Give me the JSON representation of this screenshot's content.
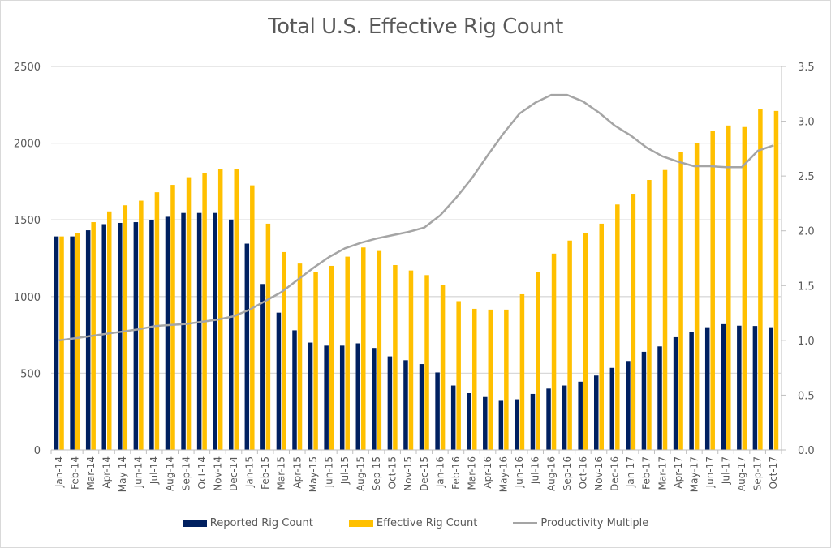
{
  "chart_data": {
    "type": "bar",
    "title": "Total U.S. Effective Rig Count",
    "xlabel": "",
    "ylabel": "",
    "y2label": "",
    "ylim": [
      0,
      2500
    ],
    "y2lim": [
      0,
      3.5
    ],
    "yticks": [
      "0",
      "500",
      "1000",
      "1500",
      "2000",
      "2500"
    ],
    "y2ticks": [
      "0.0",
      "0.5",
      "1.0",
      "1.5",
      "2.0",
      "2.5",
      "3.0",
      "3.5"
    ],
    "grid": true,
    "legend_position": "bottom",
    "categories": [
      "Jan-14",
      "Feb-14",
      "Mar-14",
      "Apr-14",
      "May-14",
      "Jun-14",
      "Jul-14",
      "Aug-14",
      "Sep-14",
      "Oct-14",
      "Nov-14",
      "Dec-14",
      "Jan-15",
      "Feb-15",
      "Mar-15",
      "Apr-15",
      "May-15",
      "Jun-15",
      "Jul-15",
      "Aug-15",
      "Sep-15",
      "Oct-15",
      "Nov-15",
      "Dec-15",
      "Jan-16",
      "Feb-16",
      "Mar-16",
      "Apr-16",
      "May-16",
      "Jun-16",
      "Jul-16",
      "Aug-16",
      "Sep-16",
      "Oct-16",
      "Nov-16",
      "Dec-16",
      "Jan-17",
      "Feb-17",
      "Mar-17",
      "Apr-17",
      "May-17",
      "Jun-17",
      "Jul-17",
      "Aug-17",
      "Sep-17",
      "Oct-17"
    ],
    "series": [
      {
        "name": "Reported Rig Count",
        "type": "bar",
        "axis": "left",
        "color": "#002060",
        "values": [
          1392,
          1392,
          1432,
          1472,
          1480,
          1485,
          1500,
          1520,
          1545,
          1545,
          1545,
          1502,
          1345,
          1082,
          895,
          780,
          700,
          680,
          680,
          695,
          665,
          610,
          585,
          560,
          505,
          420,
          370,
          345,
          320,
          330,
          365,
          400,
          420,
          445,
          485,
          535,
          580,
          640,
          675,
          735,
          770,
          800,
          820,
          810,
          808,
          800
        ]
      },
      {
        "name": "Effective Rig Count",
        "type": "bar",
        "axis": "left",
        "color": "#FFC000",
        "values": [
          1392,
          1415,
          1485,
          1555,
          1595,
          1625,
          1680,
          1728,
          1778,
          1805,
          1830,
          1833,
          1725,
          1475,
          1290,
          1215,
          1160,
          1200,
          1260,
          1320,
          1297,
          1205,
          1170,
          1140,
          1075,
          970,
          920,
          915,
          915,
          1015,
          1160,
          1280,
          1365,
          1415,
          1475,
          1600,
          1670,
          1760,
          1825,
          1940,
          2000,
          2080,
          2115,
          2105,
          2220,
          2210
        ]
      },
      {
        "name": "Productivity Multiple",
        "type": "line",
        "axis": "right",
        "color": "#A5A5A5",
        "values": [
          1.0,
          1.02,
          1.04,
          1.06,
          1.08,
          1.1,
          1.13,
          1.14,
          1.15,
          1.17,
          1.19,
          1.22,
          1.28,
          1.36,
          1.44,
          1.55,
          1.66,
          1.76,
          1.84,
          1.89,
          1.93,
          1.96,
          1.99,
          2.03,
          2.14,
          2.3,
          2.48,
          2.69,
          2.89,
          3.07,
          3.17,
          3.24,
          3.24,
          3.18,
          3.08,
          2.96,
          2.87,
          2.76,
          2.68,
          2.63,
          2.59,
          2.59,
          2.58,
          2.58,
          2.73,
          2.78
        ]
      }
    ]
  },
  "colors": {
    "grid": "#d9d9d9",
    "axis": "#bfbfbf",
    "text": "#595959"
  }
}
